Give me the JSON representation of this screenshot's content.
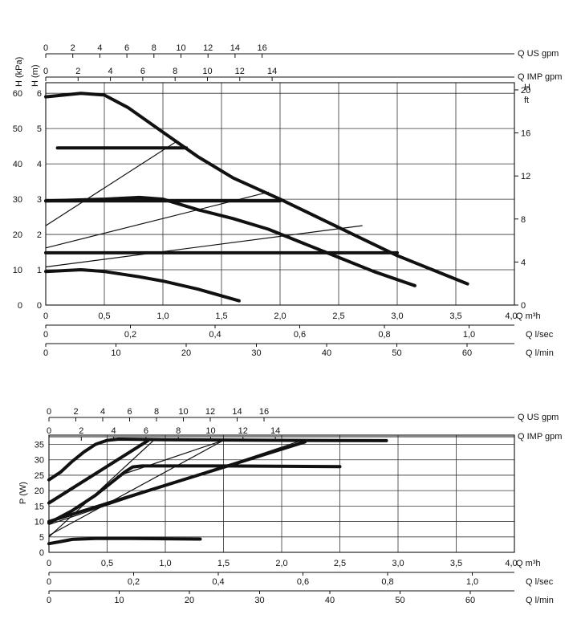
{
  "chart_data": [
    {
      "type": "line",
      "title": "",
      "xlabel": "Q m³h",
      "xlim": [
        0,
        4
      ],
      "x_ticks": [
        "0",
        "0,5",
        "1,0",
        "1,5",
        "2,0",
        "2,5",
        "3,0",
        "3,5",
        "4,0"
      ],
      "ylabel_left_kpa": "H (kPa)",
      "ylabel_left_m": "H (m)",
      "ylim": [
        0,
        6.3
      ],
      "y_ticks_m": [
        "0",
        "1",
        "2",
        "3",
        "4",
        "5",
        "6"
      ],
      "y_ticks_kpa": [
        "0",
        "10",
        "20",
        "30",
        "40",
        "50",
        "60"
      ],
      "ylabel_right": "H",
      "ylabel_right_unit": "ft",
      "y_ticks_ft": [
        "0",
        "4",
        "8",
        "12",
        "16",
        "20"
      ],
      "top_axes": [
        {
          "label": "Q US gpm",
          "ticks": [
            "0",
            "2",
            "4",
            "6",
            "8",
            "10",
            "12",
            "14",
            "16"
          ]
        },
        {
          "label": "Q IMP gpm",
          "ticks": [
            "0",
            "2",
            "4",
            "6",
            "8",
            "10",
            "12",
            "14"
          ]
        }
      ],
      "bottom_axes": [
        {
          "label": "Q l/sec",
          "ticks": [
            "0",
            "0.2",
            "0.4",
            "0.6",
            "0.8",
            "1.0"
          ]
        },
        {
          "label": "Q l/min",
          "ticks": [
            "0",
            "10",
            "20",
            "30",
            "40",
            "50",
            "60"
          ]
        }
      ],
      "grid": true,
      "series": [
        {
          "style": "thick",
          "points": [
            [
              0,
              5.9
            ],
            [
              0.3,
              6.0
            ],
            [
              0.5,
              5.95
            ],
            [
              0.7,
              5.6
            ],
            [
              1.0,
              4.9
            ],
            [
              1.3,
              4.2
            ],
            [
              1.6,
              3.6
            ],
            [
              2.0,
              3.0
            ],
            [
              2.5,
              2.2
            ],
            [
              3.0,
              1.4
            ],
            [
              3.3,
              1.0
            ],
            [
              3.6,
              0.6
            ]
          ]
        },
        {
          "style": "thick",
          "points": [
            [
              0,
              2.95
            ],
            [
              0.5,
              3.0
            ],
            [
              0.8,
              3.05
            ],
            [
              1.0,
              3.0
            ],
            [
              1.3,
              2.7
            ],
            [
              1.6,
              2.45
            ],
            [
              1.9,
              2.15
            ],
            [
              2.2,
              1.75
            ],
            [
              2.5,
              1.35
            ],
            [
              2.8,
              0.95
            ],
            [
              3.15,
              0.55
            ]
          ]
        },
        {
          "style": "thick",
          "points": [
            [
              0,
              0.95
            ],
            [
              0.3,
              1.0
            ],
            [
              0.5,
              0.95
            ],
            [
              0.8,
              0.8
            ],
            [
              1.0,
              0.68
            ],
            [
              1.3,
              0.45
            ],
            [
              1.65,
              0.12
            ]
          ]
        },
        {
          "style": "thick",
          "points": [
            [
              0.1,
              4.45
            ],
            [
              1.2,
              4.45
            ]
          ]
        },
        {
          "style": "thick",
          "points": [
            [
              0,
              2.95
            ],
            [
              2.0,
              2.95
            ]
          ]
        },
        {
          "style": "thick",
          "points": [
            [
              0,
              1.48
            ],
            [
              3.0,
              1.48
            ]
          ]
        },
        {
          "style": "thin",
          "points": [
            [
              0,
              2.25
            ],
            [
              1.1,
              4.6
            ]
          ]
        },
        {
          "style": "thin",
          "points": [
            [
              0,
              1.62
            ],
            [
              1.9,
              3.2
            ]
          ]
        },
        {
          "style": "thin",
          "points": [
            [
              0,
              1.08
            ],
            [
              2.7,
              2.25
            ]
          ]
        }
      ]
    },
    {
      "type": "line",
      "title": "",
      "xlabel": "Q m³h",
      "xlim": [
        0,
        4
      ],
      "x_ticks": [
        "0",
        "0,5",
        "1,0",
        "1,5",
        "2,0",
        "2,5",
        "3,0",
        "3,5",
        "4,0"
      ],
      "ylabel": "P (W)",
      "ylim": [
        0,
        38
      ],
      "y_ticks": [
        "0",
        "5",
        "10",
        "15",
        "20",
        "25",
        "30",
        "35"
      ],
      "top_axes": [
        {
          "label": "Q US gpm",
          "ticks": [
            "0",
            "2",
            "4",
            "6",
            "8",
            "10",
            "12",
            "14",
            "16"
          ]
        },
        {
          "label": "Q IMP gpm",
          "ticks": [
            "0",
            "2",
            "4",
            "6",
            "8",
            "10",
            "12",
            "14"
          ]
        }
      ],
      "bottom_axes": [
        {
          "label": "Q l/sec",
          "ticks": [
            "0",
            "0.2",
            "0.4",
            "0.6",
            "0.8",
            "1.0"
          ]
        },
        {
          "label": "Q l/min",
          "ticks": [
            "0",
            "10",
            "20",
            "30",
            "40",
            "50",
            "60"
          ]
        }
      ],
      "grid": true,
      "series": [
        {
          "style": "thick",
          "points": [
            [
              0,
              23.5
            ],
            [
              0.1,
              26
            ],
            [
              0.2,
              29.5
            ],
            [
              0.3,
              32.5
            ],
            [
              0.4,
              35
            ],
            [
              0.5,
              36.3
            ],
            [
              0.6,
              36.7
            ],
            [
              1.0,
              36.5
            ],
            [
              2.0,
              36.3
            ],
            [
              2.9,
              36.2
            ]
          ]
        },
        {
          "style": "thick",
          "points": [
            [
              0,
              9.5
            ],
            [
              0.2,
              13.5
            ],
            [
              0.4,
              18.5
            ],
            [
              0.55,
              23
            ],
            [
              0.65,
              26
            ],
            [
              0.72,
              27.7
            ],
            [
              0.8,
              28
            ],
            [
              1.5,
              28
            ],
            [
              2.5,
              27.8
            ]
          ]
        },
        {
          "style": "thick",
          "points": [
            [
              0,
              2.8
            ],
            [
              0.1,
              3.5
            ],
            [
              0.2,
              4.2
            ],
            [
              0.4,
              4.5
            ],
            [
              0.7,
              4.5
            ],
            [
              1.3,
              4.3
            ]
          ]
        },
        {
          "style": "thick",
          "points": [
            [
              0,
              16
            ],
            [
              0.85,
              36.2
            ]
          ]
        },
        {
          "style": "thick",
          "points": [
            [
              0,
              10
            ],
            [
              2.2,
              35.8
            ]
          ]
        },
        {
          "style": "thin",
          "points": [
            [
              0,
              5
            ],
            [
              0.9,
              36.3
            ]
          ]
        },
        {
          "style": "thin",
          "points": [
            [
              0,
              5.5
            ],
            [
              1.5,
              36.3
            ]
          ]
        },
        {
          "style": "thin",
          "points": [
            [
              0,
              9
            ],
            [
              2.15,
              36
            ]
          ]
        },
        {
          "style": "thin",
          "points": [
            [
              0.65,
              25.5
            ],
            [
              1.5,
              36.3
            ]
          ]
        }
      ]
    }
  ]
}
